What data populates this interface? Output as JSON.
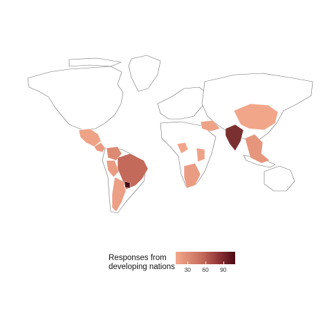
{
  "legend": {
    "title": "Responses from\ndeveloping nations",
    "ticks": [
      {
        "label": "30",
        "value": 30
      },
      {
        "label": "60",
        "value": 60
      },
      {
        "label": "90",
        "value": 90
      }
    ],
    "range": [
      10,
      110
    ],
    "colors": {
      "low": "#f3a98c",
      "mid": "#c46a5a",
      "high": "#4a0a14"
    }
  },
  "regions": [
    {
      "name": "Mexico",
      "value": 15
    },
    {
      "name": "Central America",
      "value": 20
    },
    {
      "name": "Colombia",
      "value": 35
    },
    {
      "name": "Peru",
      "value": 20
    },
    {
      "name": "Brazil",
      "value": 60
    },
    {
      "name": "Argentina",
      "value": 18
    },
    {
      "name": "Uruguay",
      "value": 110
    },
    {
      "name": "India",
      "value": 90
    },
    {
      "name": "China",
      "value": 12
    },
    {
      "name": "Nigeria",
      "value": 12
    },
    {
      "name": "Kenya",
      "value": 15
    },
    {
      "name": "Southern Africa",
      "value": 20
    },
    {
      "name": "Southeast Asia",
      "value": 25
    },
    {
      "name": "Middle East",
      "value": 15
    }
  ]
}
